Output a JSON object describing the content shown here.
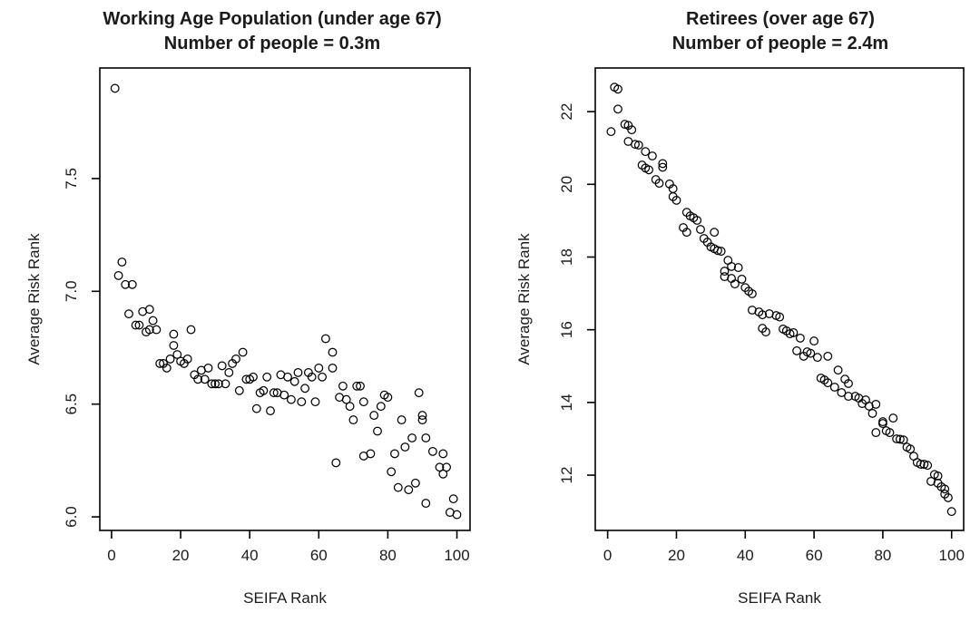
{
  "figure": {
    "background": "#ffffff",
    "axis_color": "#000000",
    "marker_color": "#000000",
    "marker_style": "open-circle"
  },
  "chart_data": [
    {
      "type": "scatter",
      "title_line1": "Working Age Population (under age 67)",
      "title_line2": "Number of people = 0.3m",
      "xlabel": "SEIFA Rank",
      "ylabel": "Average Risk Rank",
      "xlim": [
        -3.4,
        103.8
      ],
      "ylim": [
        5.94,
        7.99
      ],
      "x_ticks": {
        "values": [
          0,
          20,
          40,
          60,
          80,
          100
        ],
        "labels": [
          "0",
          "20",
          "40",
          "60",
          "80",
          "100"
        ]
      },
      "y_ticks": {
        "values": [
          6.0,
          6.5,
          7.0,
          7.5
        ],
        "labels": [
          "6.0",
          "6.5",
          "7.0",
          "7.5"
        ]
      },
      "grid": false,
      "legend": false,
      "points": [
        [
          1,
          7.9
        ],
        [
          2,
          7.07
        ],
        [
          3,
          7.13
        ],
        [
          4,
          7.03
        ],
        [
          5,
          6.9
        ],
        [
          6,
          7.03
        ],
        [
          7,
          6.85
        ],
        [
          8,
          6.85
        ],
        [
          9,
          6.91
        ],
        [
          10,
          6.82
        ],
        [
          11,
          6.92
        ],
        [
          11,
          6.83
        ],
        [
          12,
          6.87
        ],
        [
          13,
          6.83
        ],
        [
          14,
          6.68
        ],
        [
          15,
          6.68
        ],
        [
          16,
          6.66
        ],
        [
          17,
          6.7
        ],
        [
          18,
          6.81
        ],
        [
          18,
          6.76
        ],
        [
          19,
          6.72
        ],
        [
          20,
          6.69
        ],
        [
          21,
          6.68
        ],
        [
          22,
          6.7
        ],
        [
          23,
          6.83
        ],
        [
          24,
          6.63
        ],
        [
          25,
          6.61
        ],
        [
          26,
          6.65
        ],
        [
          27,
          6.61
        ],
        [
          28,
          6.66
        ],
        [
          29,
          6.59
        ],
        [
          30,
          6.59
        ],
        [
          31,
          6.59
        ],
        [
          32,
          6.67
        ],
        [
          33,
          6.59
        ],
        [
          34,
          6.64
        ],
        [
          35,
          6.68
        ],
        [
          36,
          6.7
        ],
        [
          37,
          6.56
        ],
        [
          38,
          6.73
        ],
        [
          39,
          6.61
        ],
        [
          40,
          6.61
        ],
        [
          41,
          6.62
        ],
        [
          42,
          6.48
        ],
        [
          43,
          6.55
        ],
        [
          44,
          6.56
        ],
        [
          45,
          6.62
        ],
        [
          46,
          6.47
        ],
        [
          47,
          6.55
        ],
        [
          48,
          6.55
        ],
        [
          49,
          6.63
        ],
        [
          50,
          6.54
        ],
        [
          51,
          6.62
        ],
        [
          52,
          6.52
        ],
        [
          53,
          6.6
        ],
        [
          54,
          6.64
        ],
        [
          55,
          6.51
        ],
        [
          56,
          6.57
        ],
        [
          57,
          6.64
        ],
        [
          58,
          6.62
        ],
        [
          59,
          6.51
        ],
        [
          60,
          6.66
        ],
        [
          61,
          6.62
        ],
        [
          62,
          6.79
        ],
        [
          64,
          6.73
        ],
        [
          64,
          6.66
        ],
        [
          65,
          6.24
        ],
        [
          66,
          6.53
        ],
        [
          67,
          6.58
        ],
        [
          68,
          6.52
        ],
        [
          69,
          6.49
        ],
        [
          70,
          6.43
        ],
        [
          71,
          6.58
        ],
        [
          72,
          6.58
        ],
        [
          73,
          6.51
        ],
        [
          73,
          6.27
        ],
        [
          75,
          6.28
        ],
        [
          76,
          6.45
        ],
        [
          77,
          6.38
        ],
        [
          78,
          6.49
        ],
        [
          79,
          6.54
        ],
        [
          80,
          6.53
        ],
        [
          81,
          6.2
        ],
        [
          82,
          6.28
        ],
        [
          83,
          6.13
        ],
        [
          84,
          6.43
        ],
        [
          85,
          6.31
        ],
        [
          86,
          6.12
        ],
        [
          87,
          6.35
        ],
        [
          88,
          6.15
        ],
        [
          89,
          6.55
        ],
        [
          90,
          6.45
        ],
        [
          90,
          6.43
        ],
        [
          91,
          6.35
        ],
        [
          91,
          6.06
        ],
        [
          93,
          6.29
        ],
        [
          95,
          6.22
        ],
        [
          96,
          6.28
        ],
        [
          96,
          6.19
        ],
        [
          97,
          6.22
        ],
        [
          98,
          6.02
        ],
        [
          99,
          6.08
        ],
        [
          100,
          6.01
        ]
      ]
    },
    {
      "type": "scatter",
      "title_line1": "Retirees (over age 67)",
      "title_line2": "Number of people = 2.4m",
      "xlabel": "SEIFA Rank",
      "ylabel": "Average Risk Rank",
      "xlim": [
        -3.6,
        103.5
      ],
      "ylim": [
        10.48,
        23.2
      ],
      "x_ticks": {
        "values": [
          0,
          20,
          40,
          60,
          80,
          100
        ],
        "labels": [
          "0",
          "20",
          "40",
          "60",
          "80",
          "100"
        ]
      },
      "y_ticks": {
        "values": [
          12,
          14,
          16,
          18,
          20,
          22
        ],
        "labels": [
          "12",
          "14",
          "16",
          "18",
          "20",
          "22"
        ]
      },
      "grid": false,
      "legend": false,
      "points": [
        [
          1,
          21.45
        ],
        [
          2,
          22.67
        ],
        [
          3,
          22.62
        ],
        [
          3,
          22.07
        ],
        [
          5,
          21.65
        ],
        [
          6,
          21.62
        ],
        [
          6,
          21.18
        ],
        [
          7,
          21.5
        ],
        [
          8,
          21.1
        ],
        [
          9,
          21.08
        ],
        [
          10,
          20.53
        ],
        [
          11,
          20.9
        ],
        [
          11,
          20.45
        ],
        [
          12,
          20.4
        ],
        [
          13,
          20.78
        ],
        [
          14,
          20.13
        ],
        [
          15,
          20.03
        ],
        [
          16,
          20.57
        ],
        [
          16,
          20.47
        ],
        [
          18,
          20.01
        ],
        [
          19,
          19.88
        ],
        [
          19,
          19.66
        ],
        [
          20,
          19.56
        ],
        [
          22,
          18.81
        ],
        [
          23,
          19.23
        ],
        [
          23,
          18.68
        ],
        [
          24,
          19.13
        ],
        [
          25,
          19.08
        ],
        [
          26,
          19.01
        ],
        [
          27,
          18.76
        ],
        [
          28,
          18.51
        ],
        [
          29,
          18.41
        ],
        [
          30,
          18.28
        ],
        [
          31,
          18.68
        ],
        [
          31,
          18.23
        ],
        [
          32,
          18.18
        ],
        [
          33,
          18.16
        ],
        [
          34,
          17.61
        ],
        [
          34,
          17.46
        ],
        [
          35,
          17.91
        ],
        [
          36,
          17.74
        ],
        [
          36,
          17.41
        ],
        [
          37,
          17.26
        ],
        [
          38,
          17.71
        ],
        [
          39,
          17.39
        ],
        [
          40,
          17.16
        ],
        [
          41,
          17.06
        ],
        [
          42,
          16.99
        ],
        [
          42,
          16.54
        ],
        [
          44,
          16.49
        ],
        [
          45,
          16.41
        ],
        [
          45,
          16.04
        ],
        [
          46,
          15.94
        ],
        [
          47,
          16.44
        ],
        [
          49,
          16.39
        ],
        [
          50,
          16.35
        ],
        [
          51,
          16.02
        ],
        [
          52,
          15.97
        ],
        [
          53,
          15.89
        ],
        [
          54,
          15.92
        ],
        [
          55,
          15.42
        ],
        [
          56,
          15.77
        ],
        [
          57,
          15.27
        ],
        [
          58,
          15.39
        ],
        [
          59,
          15.35
        ],
        [
          60,
          15.69
        ],
        [
          61,
          15.24
        ],
        [
          62,
          14.67
        ],
        [
          63,
          14.62
        ],
        [
          64,
          15.27
        ],
        [
          64,
          14.54
        ],
        [
          66,
          14.42
        ],
        [
          67,
          14.89
        ],
        [
          68,
          14.27
        ],
        [
          69,
          14.64
        ],
        [
          70,
          14.52
        ],
        [
          70,
          14.17
        ],
        [
          72,
          14.17
        ],
        [
          73,
          14.12
        ],
        [
          74,
          13.97
        ],
        [
          75,
          14.07
        ],
        [
          76,
          13.9
        ],
        [
          77,
          13.7
        ],
        [
          78,
          13.95
        ],
        [
          78,
          13.17
        ],
        [
          80,
          13.47
        ],
        [
          80,
          13.42
        ],
        [
          81,
          13.22
        ],
        [
          82,
          13.17
        ],
        [
          83,
          13.57
        ],
        [
          84,
          13.0
        ],
        [
          85,
          12.99
        ],
        [
          86,
          12.97
        ],
        [
          87,
          12.77
        ],
        [
          88,
          12.72
        ],
        [
          89,
          12.52
        ],
        [
          90,
          12.35
        ],
        [
          91,
          12.3
        ],
        [
          92,
          12.3
        ],
        [
          93,
          12.27
        ],
        [
          94,
          11.83
        ],
        [
          95,
          12.02
        ],
        [
          96,
          11.98
        ],
        [
          96,
          11.78
        ],
        [
          97,
          11.68
        ],
        [
          98,
          11.62
        ],
        [
          98,
          11.48
        ],
        [
          99,
          11.38
        ],
        [
          100,
          11.0
        ]
      ]
    }
  ]
}
